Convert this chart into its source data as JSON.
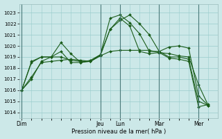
{
  "background_color": "#cce8e8",
  "grid_color": "#99cccc",
  "line_color": "#1a5c1a",
  "title": "Pression niveau de la mer( hPa )",
  "ylim": [
    1013.5,
    1023.8
  ],
  "yticks": [
    1014,
    1015,
    1016,
    1017,
    1018,
    1019,
    1020,
    1021,
    1022,
    1023
  ],
  "day_labels": [
    "Dim",
    "Jeu",
    "Lun",
    "Mar",
    "Mer"
  ],
  "day_positions": [
    0,
    32,
    40,
    56,
    72
  ],
  "xlim": [
    -1,
    80
  ],
  "series": [
    {
      "x": [
        0,
        4,
        8,
        12,
        16,
        20,
        24,
        28,
        32,
        36,
        40,
        44,
        48,
        52,
        56,
        60,
        64,
        68,
        72,
        76
      ],
      "y": [
        1016.0,
        1017.0,
        1018.6,
        1019.0,
        1019.5,
        1018.5,
        1018.5,
        1018.6,
        1019.2,
        1021.5,
        1022.3,
        1022.8,
        1022.0,
        1021.0,
        1019.5,
        1019.0,
        1019.0,
        1018.8,
        1015.0,
        1014.6
      ]
    },
    {
      "x": [
        0,
        4,
        8,
        12,
        16,
        20,
        24,
        28,
        32,
        36,
        40,
        44,
        48,
        52,
        56,
        60,
        64,
        68,
        72,
        76
      ],
      "y": [
        1016.0,
        1018.5,
        1019.0,
        1019.0,
        1020.3,
        1019.3,
        1018.5,
        1018.7,
        1019.2,
        1022.5,
        1022.8,
        1022.1,
        1021.1,
        1019.5,
        1019.5,
        1019.9,
        1020.0,
        1019.8,
        1015.5,
        1014.6
      ]
    },
    {
      "x": [
        0,
        4,
        8,
        12,
        16,
        20,
        24,
        28,
        32,
        36,
        40,
        44,
        48,
        52,
        56,
        60,
        64,
        68,
        72,
        76
      ],
      "y": [
        1016.0,
        1018.6,
        1019.0,
        1019.0,
        1019.0,
        1018.7,
        1018.6,
        1018.6,
        1019.1,
        1019.5,
        1019.6,
        1019.6,
        1019.6,
        1019.6,
        1019.4,
        1019.3,
        1019.1,
        1019.0,
        1016.5,
        1014.6
      ]
    },
    {
      "x": [
        0,
        4,
        8,
        12,
        16,
        20,
        24,
        28,
        32,
        36,
        40,
        44,
        48,
        52,
        56,
        60,
        64,
        68,
        72,
        76
      ],
      "y": [
        1016.0,
        1017.2,
        1018.5,
        1018.6,
        1018.7,
        1018.8,
        1018.7,
        1018.6,
        1019.1,
        1021.5,
        1022.5,
        1021.8,
        1019.5,
        1019.3,
        1019.4,
        1018.9,
        1018.8,
        1018.6,
        1014.5,
        1014.7
      ]
    }
  ]
}
